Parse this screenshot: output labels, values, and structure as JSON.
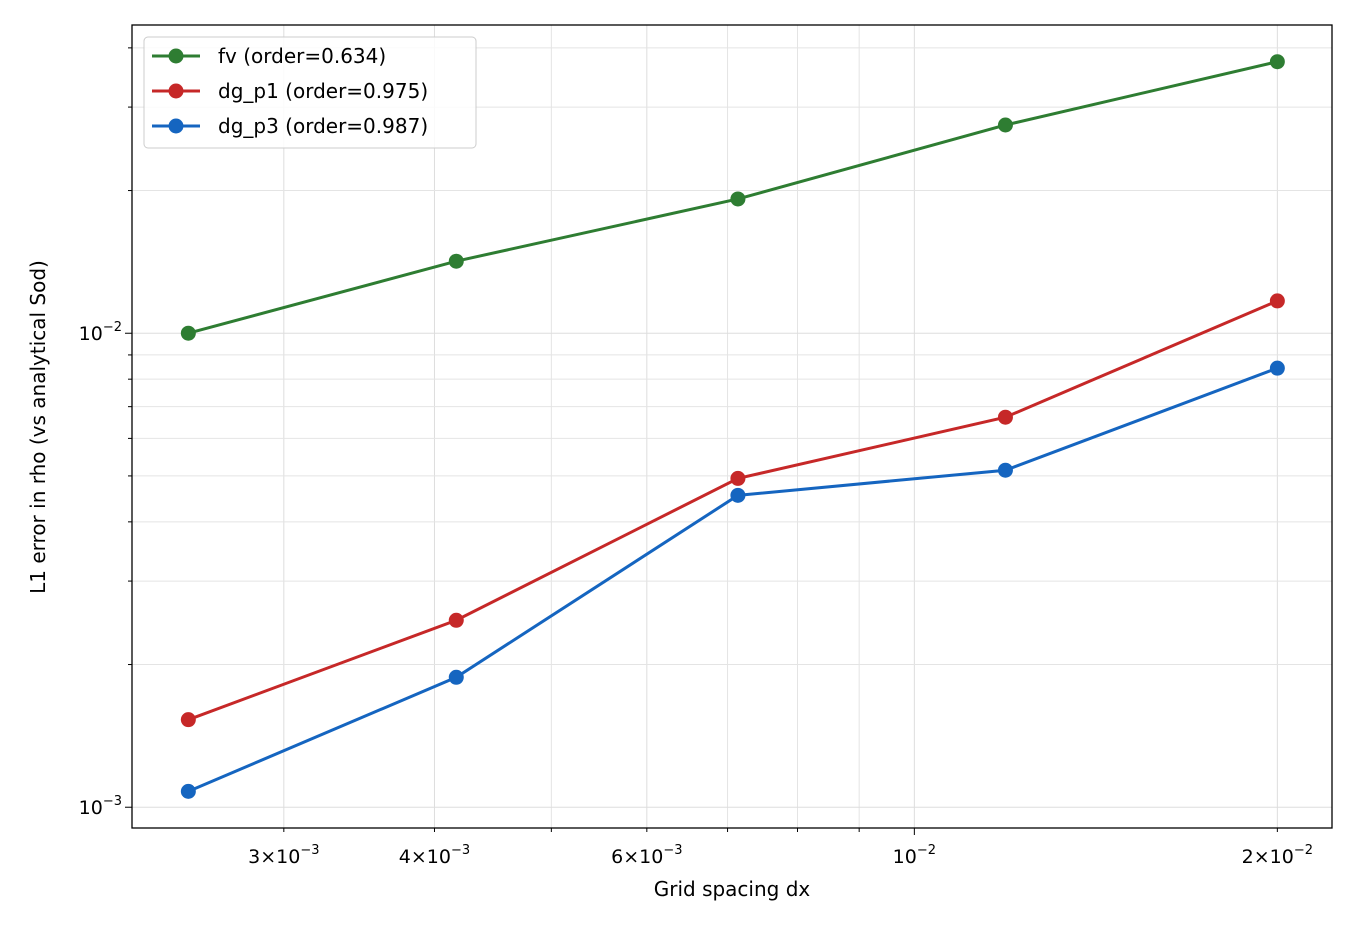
{
  "chart_data": {
    "type": "line",
    "xscale": "log",
    "yscale": "log",
    "xlabel": "Grid spacing dx",
    "ylabel": "L1 error in rho (vs analytical Sod)",
    "xlim": [
      0.002245,
      0.0222
    ],
    "ylim": [
      0.000904,
      0.0447
    ],
    "grid": true,
    "legend_position": "top-left",
    "x": [
      0.0025,
      0.00417,
      0.00714,
      0.0119,
      0.02
    ],
    "series": [
      {
        "name": "fv (order=0.634)",
        "color": "#2e7d32",
        "values": [
          0.01,
          0.01419,
          0.0192,
          0.0275,
          0.0374
        ]
      },
      {
        "name": "dg_p1 (order=0.975)",
        "color": "#c62828",
        "values": [
          0.00153,
          0.00248,
          0.00494,
          0.00665,
          0.0117
        ]
      },
      {
        "name": "dg_p3 (order=0.987)",
        "color": "#1565c0",
        "values": [
          0.00108,
          0.00188,
          0.00455,
          0.00514,
          0.00844
        ]
      }
    ],
    "xticks": [
      {
        "value": 0.003,
        "base": "3×10",
        "exp": "−3"
      },
      {
        "value": 0.004,
        "base": "4×10",
        "exp": "−3"
      },
      {
        "value": 0.006,
        "base": "6×10",
        "exp": "−3"
      },
      {
        "value": 0.01,
        "base": "10",
        "exp": "−2"
      },
      {
        "value": 0.02,
        "base": "2×10",
        "exp": "−2"
      }
    ],
    "x_minor_unlabeled": [
      0.005,
      0.007,
      0.008,
      0.009
    ],
    "yticks": [
      {
        "value": 0.001,
        "base": "10",
        "exp": "−3"
      },
      {
        "value": 0.01,
        "base": "10",
        "exp": "−2"
      }
    ],
    "y_minor_unlabeled": [
      0.002,
      0.003,
      0.004,
      0.005,
      0.006,
      0.007,
      0.008,
      0.009,
      0.02,
      0.03,
      0.04
    ]
  }
}
